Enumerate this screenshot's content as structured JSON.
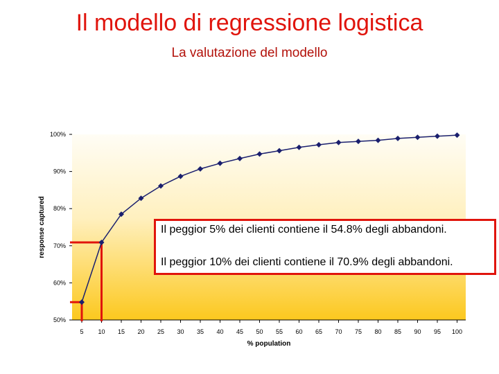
{
  "page": {
    "title": "Il modello di regressione logistica",
    "subtitle": "La valutazione del modello"
  },
  "annotation": {
    "line1": "Il peggior 5% dei clienti contiene il 54.8% degli abbandoni.",
    "line2": "Il peggior 10% dei clienti contiene il 70.9% degli abbandoni."
  },
  "colors": {
    "title": "#e0140c",
    "series": "#1a1f6e",
    "highlight": "#e0140c",
    "bg_top": "#fffdf5",
    "bg_bottom": "#fcc81e"
  },
  "chart_data": {
    "type": "line",
    "xlabel": "% population",
    "ylabel": "response captured",
    "x": [
      5,
      10,
      15,
      20,
      25,
      30,
      35,
      40,
      45,
      50,
      55,
      60,
      65,
      70,
      75,
      80,
      85,
      90,
      95,
      100
    ],
    "x_ticks": [
      "5",
      "10",
      "15",
      "20",
      "25",
      "30",
      "35",
      "40",
      "45",
      "50",
      "55",
      "60",
      "65",
      "70",
      "75",
      "80",
      "85",
      "90",
      "95",
      "100"
    ],
    "y_ticks": [
      "50%",
      "60%",
      "70%",
      "80%",
      "90%",
      "100%"
    ],
    "y_tick_values": [
      50,
      60,
      70,
      80,
      90,
      100
    ],
    "ylim": [
      50,
      100
    ],
    "series": [
      {
        "values": [
          54.8,
          70.9,
          78.5,
          82.8,
          86.1,
          88.7,
          90.7,
          92.2,
          93.5,
          94.7,
          95.6,
          96.5,
          97.2,
          97.8,
          98.1,
          98.4,
          98.9,
          99.2,
          99.5,
          99.8
        ]
      }
    ],
    "highlights": [
      {
        "x": 5,
        "y": 54.8
      },
      {
        "x": 10,
        "y": 70.9
      }
    ],
    "grid": false
  }
}
